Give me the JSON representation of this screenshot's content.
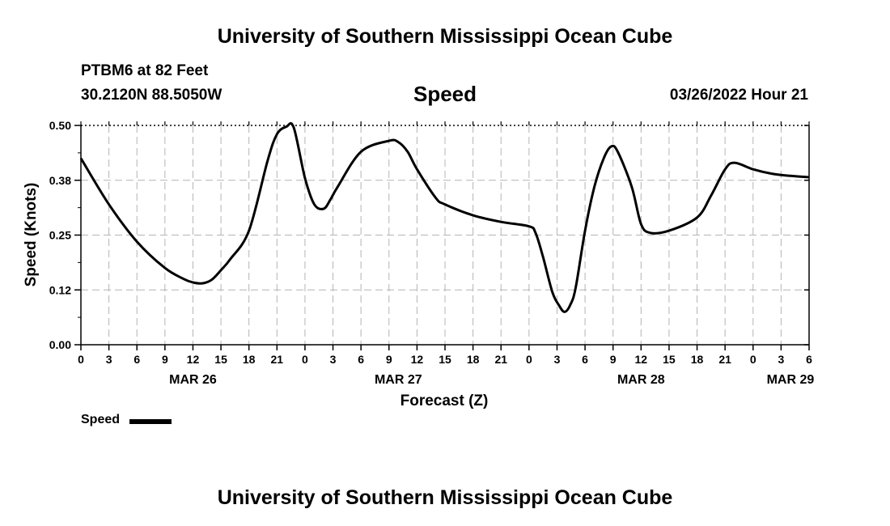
{
  "header": {
    "title": "University of Southern Mississippi Ocean Cube",
    "station": "PTBM6 at 82 Feet",
    "coords": "30.2120N  88.5050W",
    "parameter": "Speed",
    "datetime": "03/26/2022 Hour 21"
  },
  "legend": {
    "label": "Speed"
  },
  "footer": {
    "title": "University of Southern Mississippi Ocean Cube"
  },
  "chart_data": {
    "type": "line",
    "title": "Speed",
    "xlabel": "Forecast (Z)",
    "ylabel": "Speed (Knots)",
    "ylim": [
      0,
      0.5
    ],
    "yticks": [
      "0.00",
      "0.12",
      "0.25",
      "0.38",
      "0.50"
    ],
    "xlim_hours": [
      0,
      78
    ],
    "xtick_labels": [
      "0",
      "3",
      "6",
      "9",
      "12",
      "15",
      "18",
      "21",
      "0",
      "3",
      "6",
      "9",
      "12",
      "15",
      "18",
      "21",
      "0",
      "3",
      "6",
      "9",
      "12",
      "15",
      "18",
      "21",
      "0",
      "3",
      "6"
    ],
    "date_labels": [
      {
        "label": "MAR 26",
        "hour": 12
      },
      {
        "label": "MAR 27",
        "hour": 34
      },
      {
        "label": "MAR 28",
        "hour": 60
      },
      {
        "label": "MAR 29",
        "hour": 76
      }
    ],
    "grid": true,
    "series": [
      {
        "name": "Speed",
        "color": "#000000",
        "x": [
          0,
          3,
          6,
          9,
          11,
          12,
          13,
          14,
          15,
          16,
          18,
          20,
          21,
          22,
          22.8,
          24,
          25,
          26,
          26.7,
          27.5,
          30,
          33,
          34,
          35,
          36,
          38,
          39,
          42,
          45,
          48,
          48.7,
          49.5,
          50.5,
          51.2,
          51.8,
          52.4,
          53,
          54,
          55,
          56,
          56.8,
          57.5,
          59,
          60,
          61,
          63,
          66,
          67.5,
          69,
          70,
          72,
          74,
          76,
          78
        ],
        "y": [
          0.425,
          0.32,
          0.235,
          0.175,
          0.15,
          0.142,
          0.14,
          0.148,
          0.17,
          0.195,
          0.26,
          0.42,
          0.48,
          0.497,
          0.495,
          0.38,
          0.32,
          0.31,
          0.33,
          0.36,
          0.44,
          0.465,
          0.462,
          0.44,
          0.4,
          0.335,
          0.32,
          0.295,
          0.28,
          0.27,
          0.255,
          0.2,
          0.12,
          0.09,
          0.075,
          0.09,
          0.13,
          0.26,
          0.36,
          0.425,
          0.452,
          0.44,
          0.36,
          0.275,
          0.255,
          0.26,
          0.29,
          0.34,
          0.4,
          0.415,
          0.4,
          0.39,
          0.385,
          0.382
        ]
      }
    ]
  }
}
